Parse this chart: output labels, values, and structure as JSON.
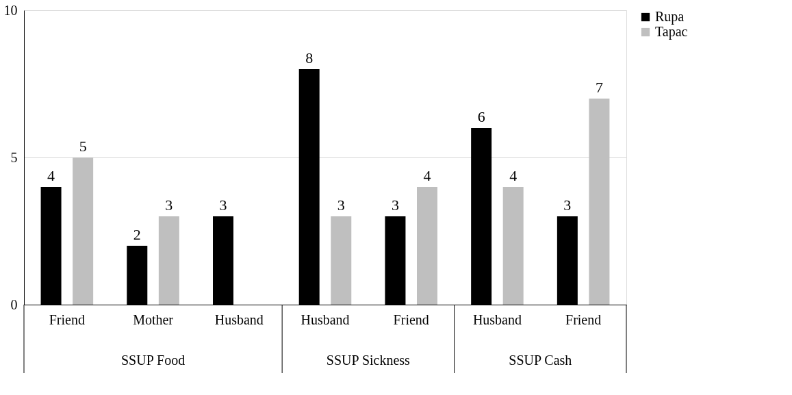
{
  "chart_data": {
    "type": "bar",
    "categories": [
      "Friend",
      "Mother",
      "Husband",
      "Husband",
      "Friend",
      "Husband",
      "Friend"
    ],
    "annotations": [
      "SSUP Food",
      "SSUP Sickness",
      "SSUP Cash"
    ],
    "series": [
      {
        "name": "Rupa",
        "color": "#000000",
        "values": [
          4,
          2,
          3,
          8,
          3,
          6,
          3
        ]
      },
      {
        "name": "Tapac",
        "color": "#bfbfbf",
        "values": [
          5,
          3,
          null,
          3,
          4,
          4,
          7
        ]
      }
    ],
    "ylim": [
      0,
      10
    ],
    "yticks": [
      0,
      5,
      10
    ],
    "grid": "y",
    "legend": "right",
    "data_labels": true
  }
}
